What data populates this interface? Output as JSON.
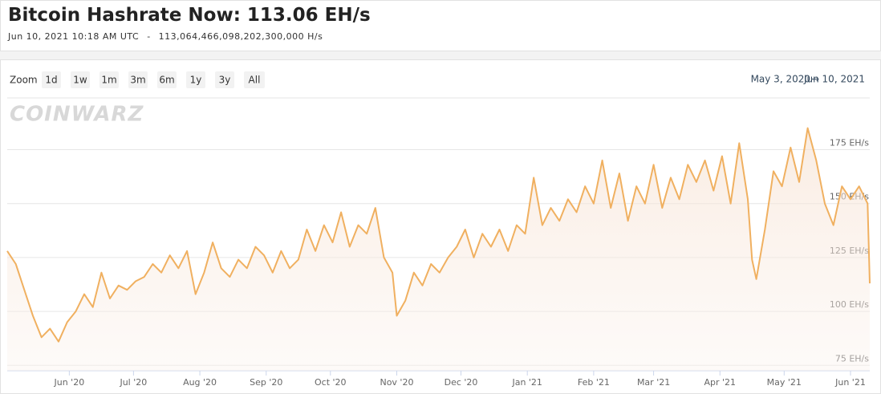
{
  "header": {
    "title": "Bitcoin Hashrate Now: 113.06 EH/s",
    "timestamp": "Jun 10, 2021 10:18 AM UTC",
    "separator": "-",
    "raw_hashrate": "113,064,466,098,202,300,000 H/s"
  },
  "controls": {
    "zoom_label": "Zoom",
    "buttons": [
      "1d",
      "1w",
      "1m",
      "3m",
      "6m",
      "1y",
      "3y",
      "All"
    ],
    "watermark": "COINWARZ",
    "range_start": "May 3, 2020",
    "range_arrow": "→",
    "range_end": "Jun 10, 2021"
  },
  "chart_data": {
    "type": "line",
    "color": "#f0b060",
    "grid": true,
    "xlim": [
      "2020-05-03",
      "2021-06-10"
    ],
    "xticks": [
      {
        "value": "2020-06-01",
        "label": "Jun '20"
      },
      {
        "value": "2020-07-01",
        "label": "Jul '20"
      },
      {
        "value": "2020-08-01",
        "label": "Aug '20"
      },
      {
        "value": "2020-09-01",
        "label": "Sep '20"
      },
      {
        "value": "2020-10-01",
        "label": "Oct '20"
      },
      {
        "value": "2020-11-01",
        "label": "Nov '20"
      },
      {
        "value": "2020-12-01",
        "label": "Dec '20"
      },
      {
        "value": "2021-01-01",
        "label": "Jan '21"
      },
      {
        "value": "2021-02-01",
        "label": "Feb '21"
      },
      {
        "value": "2021-03-01",
        "label": "Mar '21"
      },
      {
        "value": "2021-04-01",
        "label": "Apr '21"
      },
      {
        "value": "2021-05-01",
        "label": "May '21"
      },
      {
        "value": "2021-06-01",
        "label": "Jun '21"
      }
    ],
    "ylim": [
      72.5,
      199
    ],
    "yticks": [
      {
        "value": 75,
        "label": "75 EH/s"
      },
      {
        "value": 100,
        "label": "100 EH/s"
      },
      {
        "value": 125,
        "label": "125 EH/s"
      },
      {
        "value": 150,
        "label": "150 EH/s"
      },
      {
        "value": 175,
        "label": "175 EH/s"
      }
    ],
    "x": [
      "2020-05-03",
      "2020-05-07",
      "2020-05-11",
      "2020-05-15",
      "2020-05-19",
      "2020-05-23",
      "2020-05-27",
      "2020-05-31",
      "2020-06-04",
      "2020-06-08",
      "2020-06-12",
      "2020-06-16",
      "2020-06-20",
      "2020-06-24",
      "2020-06-28",
      "2020-07-02",
      "2020-07-06",
      "2020-07-10",
      "2020-07-14",
      "2020-07-18",
      "2020-07-22",
      "2020-07-26",
      "2020-07-30",
      "2020-08-03",
      "2020-08-07",
      "2020-08-11",
      "2020-08-15",
      "2020-08-19",
      "2020-08-23",
      "2020-08-27",
      "2020-08-31",
      "2020-09-04",
      "2020-09-08",
      "2020-09-12",
      "2020-09-16",
      "2020-09-20",
      "2020-09-24",
      "2020-09-28",
      "2020-10-02",
      "2020-10-06",
      "2020-10-10",
      "2020-10-14",
      "2020-10-18",
      "2020-10-22",
      "2020-10-26",
      "2020-10-30",
      "2020-11-01",
      "2020-11-05",
      "2020-11-09",
      "2020-11-13",
      "2020-11-17",
      "2020-11-21",
      "2020-11-25",
      "2020-11-29",
      "2020-12-03",
      "2020-12-07",
      "2020-12-11",
      "2020-12-15",
      "2020-12-19",
      "2020-12-23",
      "2020-12-27",
      "2020-12-31",
      "2021-01-04",
      "2021-01-08",
      "2021-01-12",
      "2021-01-16",
      "2021-01-20",
      "2021-01-24",
      "2021-01-28",
      "2021-02-01",
      "2021-02-05",
      "2021-02-09",
      "2021-02-13",
      "2021-02-17",
      "2021-02-21",
      "2021-02-25",
      "2021-03-01",
      "2021-03-05",
      "2021-03-09",
      "2021-03-13",
      "2021-03-17",
      "2021-03-21",
      "2021-03-25",
      "2021-03-29",
      "2021-04-02",
      "2021-04-06",
      "2021-04-10",
      "2021-04-14",
      "2021-04-16",
      "2021-04-18",
      "2021-04-22",
      "2021-04-26",
      "2021-04-30",
      "2021-05-04",
      "2021-05-08",
      "2021-05-12",
      "2021-05-16",
      "2021-05-20",
      "2021-05-24",
      "2021-05-28",
      "2021-06-01",
      "2021-06-05",
      "2021-06-09",
      "2021-06-10"
    ],
    "values": [
      128,
      122,
      110,
      98,
      88,
      92,
      86,
      95,
      100,
      108,
      102,
      118,
      106,
      112,
      110,
      114,
      116,
      122,
      118,
      126,
      120,
      128,
      108,
      118,
      132,
      120,
      116,
      124,
      120,
      130,
      126,
      118,
      128,
      120,
      124,
      138,
      128,
      140,
      132,
      146,
      130,
      140,
      136,
      148,
      125,
      118,
      98,
      105,
      118,
      112,
      122,
      118,
      125,
      130,
      138,
      125,
      136,
      130,
      138,
      128,
      140,
      136,
      162,
      140,
      148,
      142,
      152,
      146,
      158,
      150,
      170,
      148,
      164,
      142,
      158,
      150,
      168,
      148,
      162,
      152,
      168,
      160,
      170,
      156,
      172,
      150,
      178,
      152,
      124,
      115,
      138,
      165,
      158,
      176,
      160,
      185,
      170,
      150,
      140,
      158,
      152,
      158,
      150,
      113
    ]
  }
}
